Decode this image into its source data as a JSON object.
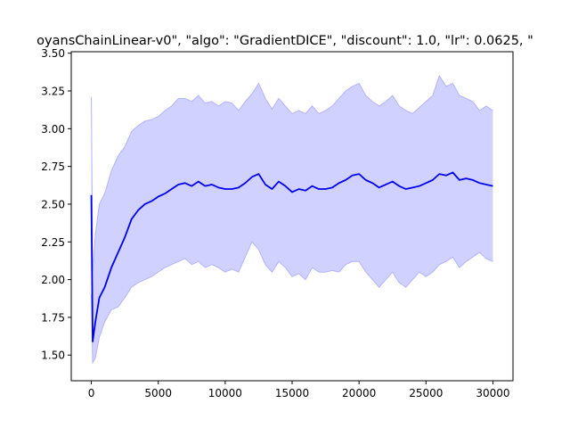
{
  "chart_data": {
    "type": "line",
    "title": "oyansChainLinear-v0\", \"algo\": \"GradientDICE\", \"discount\": 1.0, \"lr\": 0.0625, \"",
    "xlabel": "",
    "ylabel": "",
    "xlim": [
      -1500,
      31500
    ],
    "ylim": [
      1.33,
      3.51
    ],
    "xticks": [
      0,
      5000,
      10000,
      15000,
      20000,
      25000,
      30000
    ],
    "xtick_labels": [
      "0",
      "5000",
      "10000",
      "15000",
      "20000",
      "25000",
      "30000"
    ],
    "yticks": [
      1.5,
      1.75,
      2.0,
      2.25,
      2.5,
      2.75,
      3.0,
      3.25,
      3.5
    ],
    "ytick_labels": [
      "1.50",
      "1.75",
      "2.00",
      "2.25",
      "2.50",
      "2.75",
      "3.00",
      "3.25",
      "3.50"
    ],
    "grid": false,
    "colors": {
      "line": "#0000ee",
      "band_fill": "#ccccff",
      "band_edge": "#b3b3ff"
    },
    "series": [
      {
        "x": [
          0,
          100,
          300,
          600,
          1000,
          1500,
          2000,
          2500,
          3000,
          3500,
          4000,
          4500,
          5000,
          5500,
          6000,
          6500,
          7000,
          7500,
          8000,
          8500,
          9000,
          9500,
          10000,
          10500,
          11000,
          11500,
          12000,
          12500,
          13000,
          13500,
          14000,
          14500,
          15000,
          15500,
          16000,
          16500,
          17000,
          17500,
          18000,
          18500,
          19000,
          19500,
          20000,
          20500,
          21000,
          21500,
          22000,
          22500,
          23000,
          23500,
          24000,
          24500,
          25000,
          25500,
          26000,
          26500,
          27000,
          27500,
          28000,
          28500,
          29000,
          29500,
          30000
        ],
        "mean": [
          2.56,
          1.59,
          1.72,
          1.88,
          1.95,
          2.08,
          2.18,
          2.28,
          2.4,
          2.46,
          2.5,
          2.52,
          2.55,
          2.57,
          2.6,
          2.63,
          2.64,
          2.62,
          2.65,
          2.62,
          2.63,
          2.61,
          2.6,
          2.6,
          2.61,
          2.64,
          2.68,
          2.7,
          2.63,
          2.6,
          2.65,
          2.62,
          2.58,
          2.6,
          2.59,
          2.62,
          2.6,
          2.6,
          2.61,
          2.64,
          2.66,
          2.69,
          2.7,
          2.66,
          2.64,
          2.61,
          2.63,
          2.65,
          2.62,
          2.6,
          2.61,
          2.62,
          2.64,
          2.66,
          2.7,
          2.69,
          2.71,
          2.66,
          2.67,
          2.66,
          2.64,
          2.63,
          2.62
        ],
        "upper": [
          3.21,
          2.05,
          2.3,
          2.5,
          2.57,
          2.72,
          2.82,
          2.88,
          2.98,
          3.02,
          3.05,
          3.06,
          3.08,
          3.12,
          3.15,
          3.2,
          3.2,
          3.18,
          3.22,
          3.17,
          3.18,
          3.15,
          3.18,
          3.17,
          3.12,
          3.18,
          3.23,
          3.3,
          3.2,
          3.13,
          3.2,
          3.15,
          3.1,
          3.12,
          3.1,
          3.15,
          3.1,
          3.12,
          3.15,
          3.2,
          3.25,
          3.28,
          3.3,
          3.22,
          3.18,
          3.15,
          3.18,
          3.22,
          3.15,
          3.12,
          3.1,
          3.14,
          3.18,
          3.22,
          3.35,
          3.28,
          3.3,
          3.22,
          3.2,
          3.18,
          3.12,
          3.15,
          3.12
        ],
        "lower": [
          1.9,
          1.45,
          1.48,
          1.62,
          1.72,
          1.8,
          1.82,
          1.88,
          1.95,
          1.98,
          2.0,
          2.02,
          2.05,
          2.08,
          2.1,
          2.12,
          2.14,
          2.1,
          2.12,
          2.08,
          2.1,
          2.08,
          2.05,
          2.07,
          2.05,
          2.15,
          2.25,
          2.2,
          2.1,
          2.05,
          2.12,
          2.08,
          2.02,
          2.04,
          2.0,
          2.08,
          2.05,
          2.05,
          2.06,
          2.05,
          2.1,
          2.12,
          2.12,
          2.05,
          2.0,
          1.95,
          2.0,
          2.05,
          1.98,
          1.95,
          2.0,
          2.05,
          2.02,
          2.05,
          2.1,
          2.12,
          2.15,
          2.08,
          2.12,
          2.15,
          2.18,
          2.14,
          2.12
        ]
      }
    ]
  }
}
